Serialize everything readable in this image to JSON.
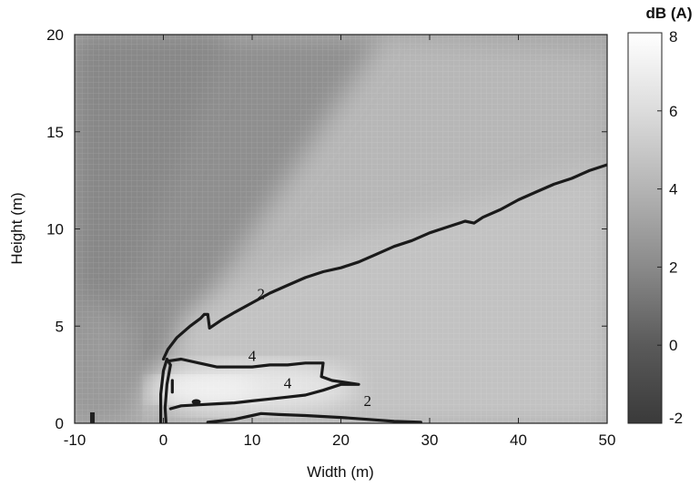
{
  "chart_data": {
    "type": "heatmap",
    "title": "",
    "xlabel": "Width (m)",
    "ylabel": "Height (m)",
    "xlim": [
      -10,
      50
    ],
    "ylim": [
      0,
      20
    ],
    "x_ticks": [
      -10,
      0,
      10,
      20,
      30,
      40,
      50
    ],
    "y_ticks": [
      0,
      5,
      10,
      15,
      20
    ],
    "grid": false,
    "colormap": "gray",
    "colorbar": {
      "title": "dB (A)",
      "range": [
        -2,
        8
      ],
      "ticks": [
        -2,
        0,
        2,
        4,
        6,
        8
      ]
    },
    "contours": [
      {
        "level": 2,
        "label": "2",
        "label_at": [
          11,
          6.4
        ],
        "points": [
          [
            0,
            3.3
          ],
          [
            0.5,
            3.8
          ],
          [
            1.5,
            4.4
          ],
          [
            3,
            5
          ],
          [
            4.2,
            5.4
          ],
          [
            4.6,
            5.6
          ],
          [
            5,
            5.6
          ],
          [
            5.2,
            4.9
          ],
          [
            6.5,
            5.3
          ],
          [
            8,
            5.7
          ],
          [
            10,
            6.2
          ],
          [
            12,
            6.7
          ],
          [
            14,
            7.1
          ],
          [
            16,
            7.5
          ],
          [
            18,
            7.8
          ],
          [
            20,
            8.0
          ],
          [
            22,
            8.3
          ],
          [
            24,
            8.7
          ],
          [
            26,
            9.1
          ],
          [
            28,
            9.4
          ],
          [
            30,
            9.8
          ],
          [
            32,
            10.1
          ],
          [
            34,
            10.4
          ],
          [
            35,
            10.3
          ],
          [
            36,
            10.6
          ],
          [
            38,
            11
          ],
          [
            40,
            11.5
          ],
          [
            42,
            11.9
          ],
          [
            44,
            12.3
          ],
          [
            46,
            12.6
          ],
          [
            48,
            13
          ],
          [
            50,
            13.3
          ]
        ]
      },
      {
        "level": 4,
        "label": "4",
        "label_at": [
          10,
          3.2
        ],
        "points": [
          [
            0.5,
            3.2
          ],
          [
            2,
            3.3
          ],
          [
            4,
            3.1
          ],
          [
            6,
            2.9
          ],
          [
            8,
            2.9
          ],
          [
            10,
            2.9
          ],
          [
            12,
            3.0
          ],
          [
            14,
            3.0
          ],
          [
            16,
            3.1
          ],
          [
            18,
            3.1
          ],
          [
            17.8,
            2.4
          ],
          [
            19,
            2.2
          ],
          [
            22,
            2.0
          ],
          [
            20,
            2.0
          ],
          [
            18,
            1.7
          ],
          [
            16,
            1.45
          ],
          [
            14,
            1.35
          ],
          [
            12,
            1.25
          ],
          [
            10,
            1.15
          ],
          [
            8,
            1.05
          ],
          [
            6,
            1.0
          ],
          [
            4,
            0.95
          ],
          [
            2,
            0.9
          ],
          [
            0.8,
            0.75
          ]
        ]
      },
      {
        "level": 4,
        "label": "4",
        "label_at": [
          14,
          1.8
        ],
        "points": [
          [
            1,
            2.2
          ],
          [
            1,
            1.6
          ]
        ]
      },
      {
        "level": 2,
        "label": "2",
        "label_at": [
          23,
          0.9
        ],
        "points": [
          [
            5,
            0.05
          ],
          [
            8,
            0.2
          ],
          [
            10,
            0.4
          ],
          [
            11,
            0.5
          ],
          [
            13,
            0.45
          ],
          [
            16,
            0.4
          ],
          [
            20,
            0.3
          ],
          [
            23,
            0.2
          ],
          [
            26,
            0.1
          ],
          [
            29,
            0.05
          ]
        ]
      },
      {
        "level": 2,
        "label": "",
        "label_at": null,
        "points": [
          [
            -0.3,
            0
          ],
          [
            -0.3,
            1.5
          ],
          [
            0,
            2.7
          ],
          [
            0.4,
            3.3
          ],
          [
            0.8,
            3.0
          ],
          [
            0.4,
            2.0
          ],
          [
            0.2,
            0.8
          ],
          [
            0.3,
            0
          ]
        ]
      }
    ],
    "series": []
  }
}
